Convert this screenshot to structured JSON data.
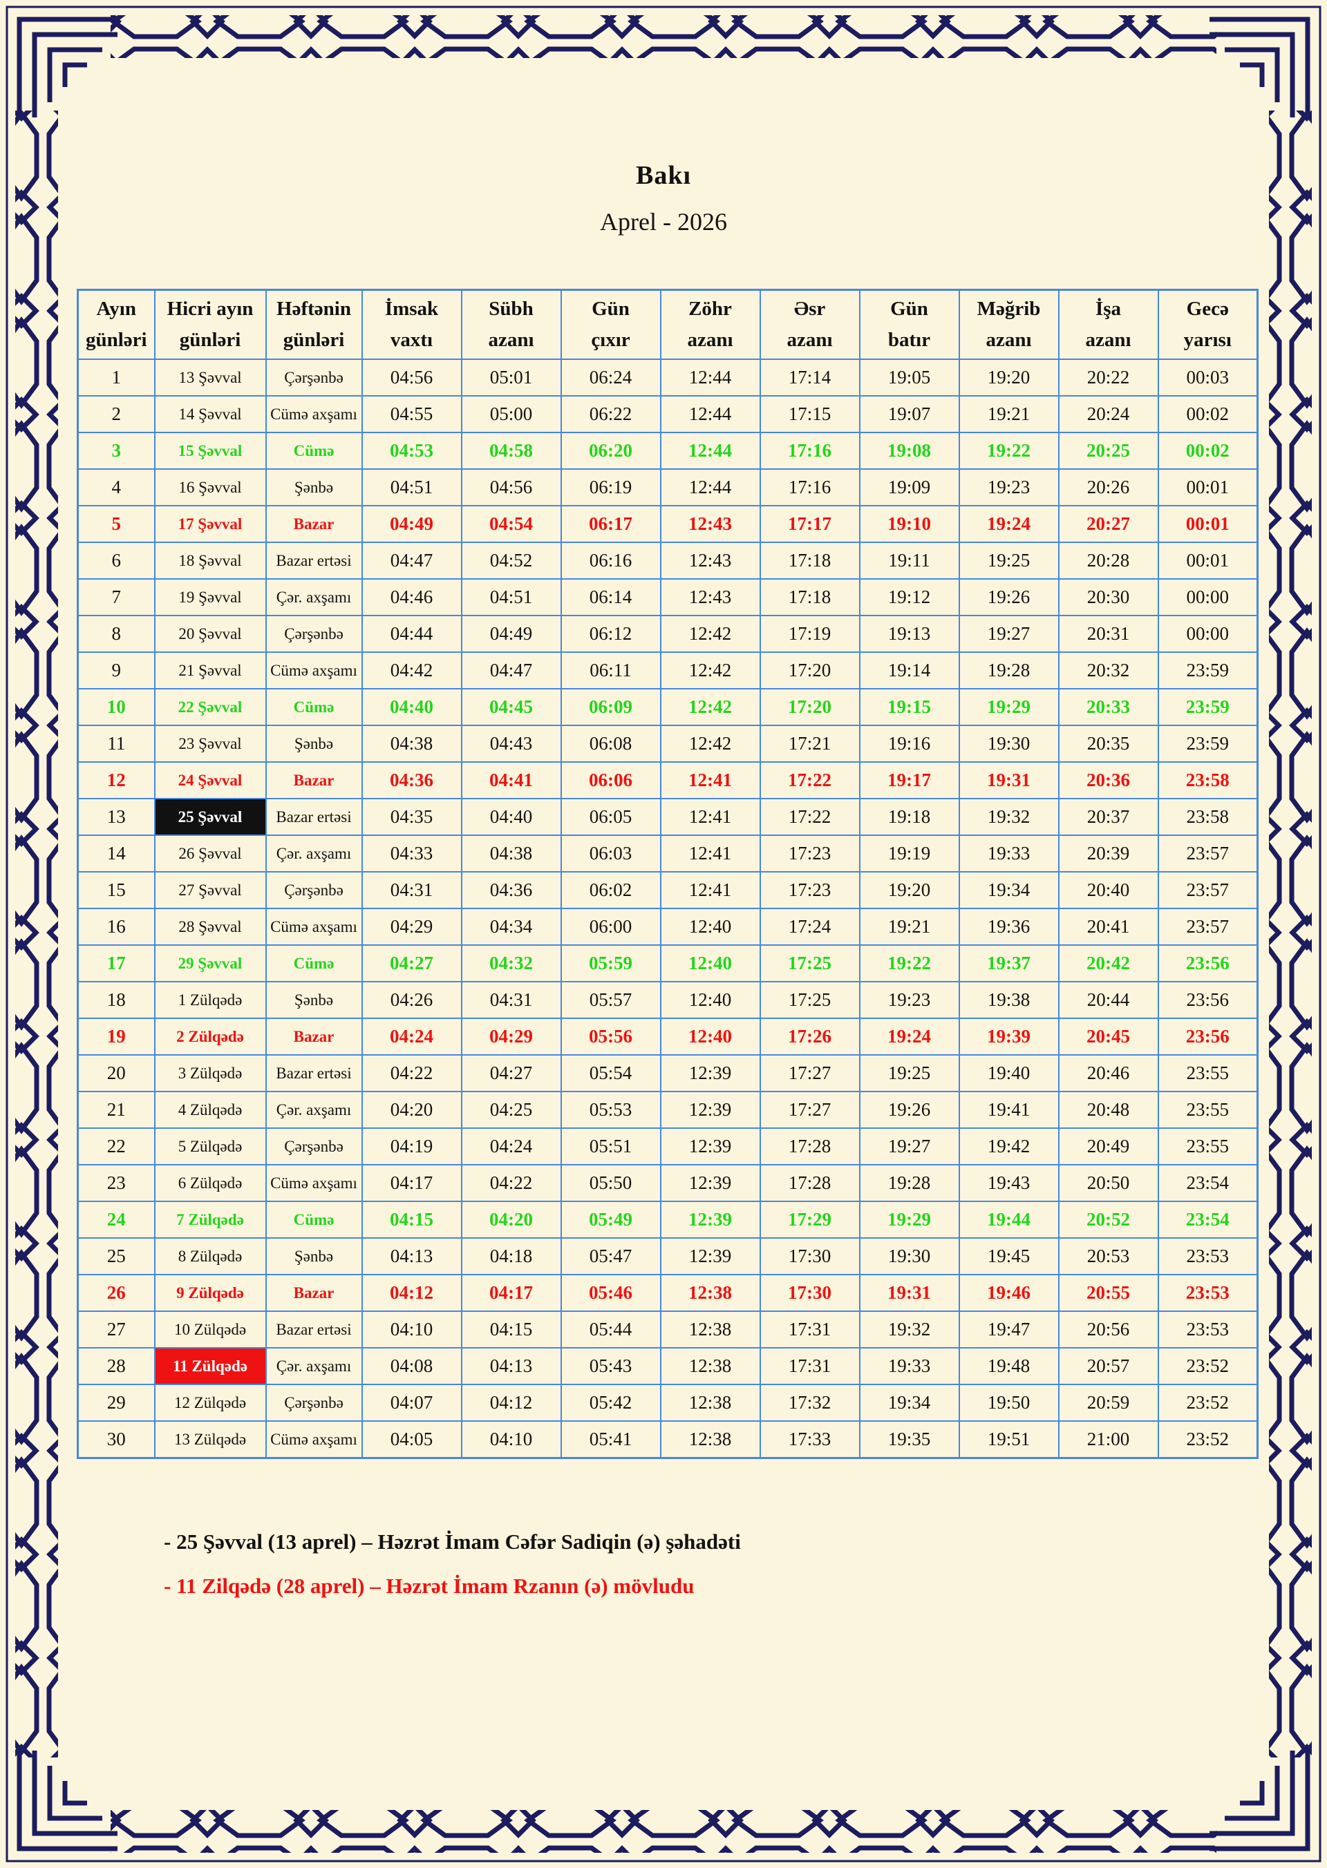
{
  "title": "Bakı",
  "subtitle": "Aprel - 2026",
  "colors": {
    "page_cream": "#fcf5dd",
    "frame_navy": "#1c1c5e",
    "grid_blue": "#4688e0",
    "friday_green": "#24d51e",
    "sunday_red": "#ee1212",
    "highlight_black": "#111111"
  },
  "table": {
    "headers": [
      {
        "l1": "Ayın",
        "l2": "günləri"
      },
      {
        "l1": "Hicri ayın",
        "l2": "günləri"
      },
      {
        "l1": "Həftənin",
        "l2": "günləri"
      },
      {
        "l1": "İmsak",
        "l2": "vaxtı"
      },
      {
        "l1": "Sübh",
        "l2": "azanı"
      },
      {
        "l1": "Gün",
        "l2": "çıxır"
      },
      {
        "l1": "Zöhr",
        "l2": "azanı"
      },
      {
        "l1": "Əsr",
        "l2": "azanı"
      },
      {
        "l1": "Gün",
        "l2": "batır"
      },
      {
        "l1": "Məğrib",
        "l2": "azanı"
      },
      {
        "l1": "İşa",
        "l2": "azanı"
      },
      {
        "l1": "Gecə",
        "l2": "yarısı"
      }
    ],
    "rows": [
      {
        "day": "1",
        "hijri": "13 Şəvval",
        "weekday": "Çərşənbə",
        "times": [
          "04:56",
          "05:01",
          "06:24",
          "12:44",
          "17:14",
          "19:05",
          "19:20",
          "20:22",
          "00:03"
        ],
        "style": "normal",
        "hijri_style": "normal"
      },
      {
        "day": "2",
        "hijri": "14 Şəvval",
        "weekday": "Cümə axşamı",
        "times": [
          "04:55",
          "05:00",
          "06:22",
          "12:44",
          "17:15",
          "19:07",
          "19:21",
          "20:24",
          "00:02"
        ],
        "style": "normal",
        "hijri_style": "normal"
      },
      {
        "day": "3",
        "hijri": "15 Şəvval",
        "weekday": "Cümə",
        "times": [
          "04:53",
          "04:58",
          "06:20",
          "12:44",
          "17:16",
          "19:08",
          "19:22",
          "20:25",
          "00:02"
        ],
        "style": "friday",
        "hijri_style": "normal"
      },
      {
        "day": "4",
        "hijri": "16 Şəvval",
        "weekday": "Şənbə",
        "times": [
          "04:51",
          "04:56",
          "06:19",
          "12:44",
          "17:16",
          "19:09",
          "19:23",
          "20:26",
          "00:01"
        ],
        "style": "normal",
        "hijri_style": "normal"
      },
      {
        "day": "5",
        "hijri": "17 Şəvval",
        "weekday": "Bazar",
        "times": [
          "04:49",
          "04:54",
          "06:17",
          "12:43",
          "17:17",
          "19:10",
          "19:24",
          "20:27",
          "00:01"
        ],
        "style": "sunday",
        "hijri_style": "normal"
      },
      {
        "day": "6",
        "hijri": "18 Şəvval",
        "weekday": "Bazar ertəsi",
        "times": [
          "04:47",
          "04:52",
          "06:16",
          "12:43",
          "17:18",
          "19:11",
          "19:25",
          "20:28",
          "00:01"
        ],
        "style": "normal",
        "hijri_style": "normal"
      },
      {
        "day": "7",
        "hijri": "19 Şəvval",
        "weekday": "Çər. axşamı",
        "times": [
          "04:46",
          "04:51",
          "06:14",
          "12:43",
          "17:18",
          "19:12",
          "19:26",
          "20:30",
          "00:00"
        ],
        "style": "normal",
        "hijri_style": "normal"
      },
      {
        "day": "8",
        "hijri": "20 Şəvval",
        "weekday": "Çərşənbə",
        "times": [
          "04:44",
          "04:49",
          "06:12",
          "12:42",
          "17:19",
          "19:13",
          "19:27",
          "20:31",
          "00:00"
        ],
        "style": "normal",
        "hijri_style": "normal"
      },
      {
        "day": "9",
        "hijri": "21 Şəvval",
        "weekday": "Cümə axşamı",
        "times": [
          "04:42",
          "04:47",
          "06:11",
          "12:42",
          "17:20",
          "19:14",
          "19:28",
          "20:32",
          "23:59"
        ],
        "style": "normal",
        "hijri_style": "normal"
      },
      {
        "day": "10",
        "hijri": "22 Şəvval",
        "weekday": "Cümə",
        "times": [
          "04:40",
          "04:45",
          "06:09",
          "12:42",
          "17:20",
          "19:15",
          "19:29",
          "20:33",
          "23:59"
        ],
        "style": "friday",
        "hijri_style": "normal"
      },
      {
        "day": "11",
        "hijri": "23 Şəvval",
        "weekday": "Şənbə",
        "times": [
          "04:38",
          "04:43",
          "06:08",
          "12:42",
          "17:21",
          "19:16",
          "19:30",
          "20:35",
          "23:59"
        ],
        "style": "normal",
        "hijri_style": "normal"
      },
      {
        "day": "12",
        "hijri": "24 Şəvval",
        "weekday": "Bazar",
        "times": [
          "04:36",
          "04:41",
          "06:06",
          "12:41",
          "17:22",
          "19:17",
          "19:31",
          "20:36",
          "23:58"
        ],
        "style": "sunday",
        "hijri_style": "normal"
      },
      {
        "day": "13",
        "hijri": "25 Şəvval",
        "weekday": "Bazar ertəsi",
        "times": [
          "04:35",
          "04:40",
          "06:05",
          "12:41",
          "17:22",
          "19:18",
          "19:32",
          "20:37",
          "23:58"
        ],
        "style": "normal",
        "hijri_style": "black"
      },
      {
        "day": "14",
        "hijri": "26 Şəvval",
        "weekday": "Çər. axşamı",
        "times": [
          "04:33",
          "04:38",
          "06:03",
          "12:41",
          "17:23",
          "19:19",
          "19:33",
          "20:39",
          "23:57"
        ],
        "style": "normal",
        "hijri_style": "normal"
      },
      {
        "day": "15",
        "hijri": "27 Şəvval",
        "weekday": "Çərşənbə",
        "times": [
          "04:31",
          "04:36",
          "06:02",
          "12:41",
          "17:23",
          "19:20",
          "19:34",
          "20:40",
          "23:57"
        ],
        "style": "normal",
        "hijri_style": "normal"
      },
      {
        "day": "16",
        "hijri": "28 Şəvval",
        "weekday": "Cümə axşamı",
        "times": [
          "04:29",
          "04:34",
          "06:00",
          "12:40",
          "17:24",
          "19:21",
          "19:36",
          "20:41",
          "23:57"
        ],
        "style": "normal",
        "hijri_style": "normal"
      },
      {
        "day": "17",
        "hijri": "29 Şəvval",
        "weekday": "Cümə",
        "times": [
          "04:27",
          "04:32",
          "05:59",
          "12:40",
          "17:25",
          "19:22",
          "19:37",
          "20:42",
          "23:56"
        ],
        "style": "friday",
        "hijri_style": "normal"
      },
      {
        "day": "18",
        "hijri": "1 Zülqədə",
        "weekday": "Şənbə",
        "times": [
          "04:26",
          "04:31",
          "05:57",
          "12:40",
          "17:25",
          "19:23",
          "19:38",
          "20:44",
          "23:56"
        ],
        "style": "normal",
        "hijri_style": "normal"
      },
      {
        "day": "19",
        "hijri": "2 Zülqədə",
        "weekday": "Bazar",
        "times": [
          "04:24",
          "04:29",
          "05:56",
          "12:40",
          "17:26",
          "19:24",
          "19:39",
          "20:45",
          "23:56"
        ],
        "style": "sunday",
        "hijri_style": "normal"
      },
      {
        "day": "20",
        "hijri": "3 Zülqədə",
        "weekday": "Bazar ertəsi",
        "times": [
          "04:22",
          "04:27",
          "05:54",
          "12:39",
          "17:27",
          "19:25",
          "19:40",
          "20:46",
          "23:55"
        ],
        "style": "normal",
        "hijri_style": "normal"
      },
      {
        "day": "21",
        "hijri": "4 Zülqədə",
        "weekday": "Çər. axşamı",
        "times": [
          "04:20",
          "04:25",
          "05:53",
          "12:39",
          "17:27",
          "19:26",
          "19:41",
          "20:48",
          "23:55"
        ],
        "style": "normal",
        "hijri_style": "normal"
      },
      {
        "day": "22",
        "hijri": "5 Zülqədə",
        "weekday": "Çərşənbə",
        "times": [
          "04:19",
          "04:24",
          "05:51",
          "12:39",
          "17:28",
          "19:27",
          "19:42",
          "20:49",
          "23:55"
        ],
        "style": "normal",
        "hijri_style": "normal"
      },
      {
        "day": "23",
        "hijri": "6 Zülqədə",
        "weekday": "Cümə axşamı",
        "times": [
          "04:17",
          "04:22",
          "05:50",
          "12:39",
          "17:28",
          "19:28",
          "19:43",
          "20:50",
          "23:54"
        ],
        "style": "normal",
        "hijri_style": "normal"
      },
      {
        "day": "24",
        "hijri": "7 Zülqədə",
        "weekday": "Cümə",
        "times": [
          "04:15",
          "04:20",
          "05:49",
          "12:39",
          "17:29",
          "19:29",
          "19:44",
          "20:52",
          "23:54"
        ],
        "style": "friday",
        "hijri_style": "normal"
      },
      {
        "day": "25",
        "hijri": "8 Zülqədə",
        "weekday": "Şənbə",
        "times": [
          "04:13",
          "04:18",
          "05:47",
          "12:39",
          "17:30",
          "19:30",
          "19:45",
          "20:53",
          "23:53"
        ],
        "style": "normal",
        "hijri_style": "normal"
      },
      {
        "day": "26",
        "hijri": "9 Zülqədə",
        "weekday": "Bazar",
        "times": [
          "04:12",
          "04:17",
          "05:46",
          "12:38",
          "17:30",
          "19:31",
          "19:46",
          "20:55",
          "23:53"
        ],
        "style": "sunday",
        "hijri_style": "normal"
      },
      {
        "day": "27",
        "hijri": "10 Zülqədə",
        "weekday": "Bazar ertəsi",
        "times": [
          "04:10",
          "04:15",
          "05:44",
          "12:38",
          "17:31",
          "19:32",
          "19:47",
          "20:56",
          "23:53"
        ],
        "style": "normal",
        "hijri_style": "normal"
      },
      {
        "day": "28",
        "hijri": "11 Zülqədə",
        "weekday": "Çər. axşamı",
        "times": [
          "04:08",
          "04:13",
          "05:43",
          "12:38",
          "17:31",
          "19:33",
          "19:48",
          "20:57",
          "23:52"
        ],
        "style": "normal",
        "hijri_style": "red"
      },
      {
        "day": "29",
        "hijri": "12 Zülqədə",
        "weekday": "Çərşənbə",
        "times": [
          "04:07",
          "04:12",
          "05:42",
          "12:38",
          "17:32",
          "19:34",
          "19:50",
          "20:59",
          "23:52"
        ],
        "style": "normal",
        "hijri_style": "normal"
      },
      {
        "day": "30",
        "hijri": "13 Zülqədə",
        "weekday": "Cümə axşamı",
        "times": [
          "04:05",
          "04:10",
          "05:41",
          "12:38",
          "17:33",
          "19:35",
          "19:51",
          "21:00",
          "23:52"
        ],
        "style": "normal",
        "hijri_style": "normal"
      }
    ]
  },
  "notes": {
    "note1": "- 25 Şəvval (13 aprel) – Həzrət İmam Cəfər Sadiqin (ə) şəhadəti",
    "note2": "- 11 Zilqədə (28 aprel) – Həzrət İmam Rzanın (ə) mövludu"
  }
}
